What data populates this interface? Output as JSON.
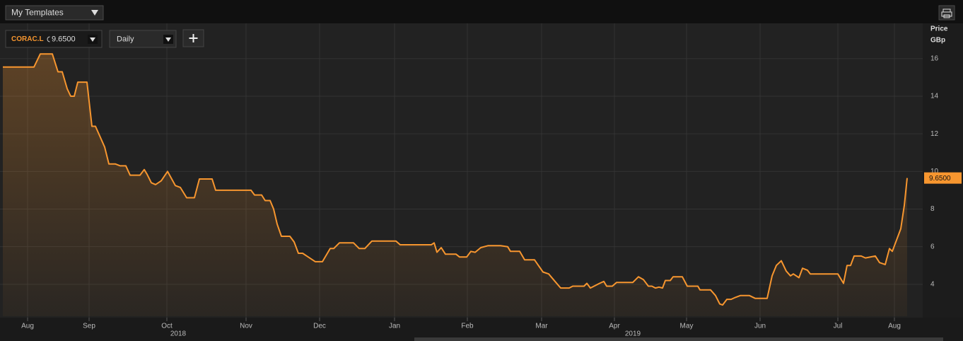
{
  "toolbar": {
    "template": "My Templates",
    "interval": "Daily"
  },
  "chart_data": {
    "type": "line",
    "axis_title": "Price",
    "axis_unit": "GBp",
    "x": [
      0,
      8.8,
      10.6,
      14,
      15.6,
      16.8,
      18.2,
      19.2,
      20.2,
      21.2,
      23.8,
      25.2,
      26.2,
      28.8,
      30,
      31.8,
      33.2,
      34.8,
      36,
      38.8,
      40,
      40.8,
      42,
      43.2,
      44.8,
      46.6,
      48.8,
      50.2,
      52,
      54.2,
      55.6,
      59.2,
      60.2,
      70.2,
      71.2,
      73.2,
      74.2,
      75.6,
      76.6,
      77.6,
      78.8,
      81.2,
      82.4,
      83.6,
      84.8,
      86.4,
      88.4,
      90.4,
      92.6,
      93.6,
      95.2,
      99.2,
      100.8,
      102.4,
      104.4,
      111.2,
      112.4,
      121.2,
      122,
      122.8,
      124,
      125.2,
      128.2,
      129.2,
      131.2,
      132.4,
      133.6,
      135.2,
      137.2,
      140.8,
      142.8,
      143.6,
      146.2,
      147.6,
      150.4,
      152.8,
      154.4,
      156.2,
      157.8,
      160.2,
      161.2,
      164.4,
      165.2,
      166.2,
      168.8,
      170,
      170.8,
      172.4,
      173.6,
      178.2,
      179.8,
      181.2,
      182.6,
      183.6,
      184.6,
      185.6,
      186.6,
      187.4,
      188.8,
      189.6,
      192.2,
      193.6,
      196.6,
      197.2,
      200.2,
      201.6,
      202.8,
      203.6,
      204.8,
      206,
      207.2,
      208.6,
      211.2,
      212.8,
      216.2,
      217.6,
      218.8,
      220.2,
      221.6,
      222.8,
      223.6,
      225.2,
      226.2,
      227.6,
      228.4,
      236.2,
      237.8,
      238.8,
      239.8,
      240.8,
      242.8,
      244,
      246.8,
      248,
      249.6,
      250.8,
      251.6,
      252.8,
      254,
      255,
      255.8
    ],
    "series": [
      {
        "name": "CORAC.L",
        "color": "#f7962f",
        "values": [
          15.55,
          15.55,
          16.25,
          16.25,
          15.3,
          15.3,
          14.4,
          14.0,
          14.0,
          14.75,
          14.75,
          12.4,
          12.4,
          11.3,
          10.4,
          10.4,
          10.3,
          10.3,
          9.8,
          9.8,
          10.1,
          9.85,
          9.4,
          9.3,
          9.5,
          10.0,
          9.25,
          9.15,
          8.6,
          8.6,
          9.6,
          9.6,
          9.0,
          9.0,
          8.75,
          8.75,
          8.45,
          8.45,
          8.0,
          7.2,
          6.55,
          6.55,
          6.25,
          5.65,
          5.65,
          5.45,
          5.2,
          5.2,
          5.9,
          5.9,
          6.2,
          6.2,
          5.9,
          5.9,
          6.3,
          6.3,
          6.1,
          6.1,
          6.2,
          5.7,
          5.95,
          5.6,
          5.6,
          5.45,
          5.45,
          5.75,
          5.7,
          5.95,
          6.05,
          6.05,
          6.0,
          5.75,
          5.75,
          5.3,
          5.3,
          4.65,
          4.55,
          4.15,
          3.8,
          3.8,
          3.9,
          3.9,
          4.05,
          3.8,
          4.05,
          4.15,
          3.9,
          3.9,
          4.1,
          4.1,
          4.4,
          4.25,
          3.9,
          3.9,
          3.8,
          3.85,
          3.8,
          4.2,
          4.2,
          4.4,
          4.4,
          3.9,
          3.9,
          3.7,
          3.7,
          3.4,
          2.95,
          2.9,
          3.2,
          3.2,
          3.3,
          3.4,
          3.4,
          3.25,
          3.25,
          4.45,
          5.0,
          5.25,
          4.7,
          4.45,
          4.55,
          4.35,
          4.85,
          4.75,
          4.55,
          4.55,
          4.05,
          5.0,
          5.0,
          5.5,
          5.5,
          5.4,
          5.5,
          5.15,
          5.05,
          5.9,
          5.75,
          6.35,
          6.95,
          8.2,
          9.65
        ]
      }
    ],
    "last_value_label": "9.6500",
    "xlim": [
      0,
      260
    ],
    "ylim": [
      2.3,
      17.8
    ],
    "yticks": [
      4,
      6,
      8,
      10,
      12,
      14,
      16
    ],
    "xticks": [
      {
        "value": 7,
        "label": "Aug"
      },
      {
        "value": 24.4,
        "label": "Sep"
      },
      {
        "value": 46.4,
        "label": "Oct"
      },
      {
        "value": 68.8,
        "label": "Nov"
      },
      {
        "value": 89.6,
        "label": "Dec"
      },
      {
        "value": 110.8,
        "label": "Jan"
      },
      {
        "value": 131.4,
        "label": "Feb"
      },
      {
        "value": 152.4,
        "label": "Mar"
      },
      {
        "value": 173,
        "label": "Apr"
      },
      {
        "value": 193.4,
        "label": "May"
      },
      {
        "value": 214.2,
        "label": "Jun"
      },
      {
        "value": 236.2,
        "label": "Jul"
      },
      {
        "value": 252.2,
        "label": "Aug"
      }
    ],
    "year_ticks": [
      {
        "value": 49.6,
        "label": "2018"
      },
      {
        "value": 178.2,
        "label": "2019"
      }
    ],
    "grid": true
  }
}
